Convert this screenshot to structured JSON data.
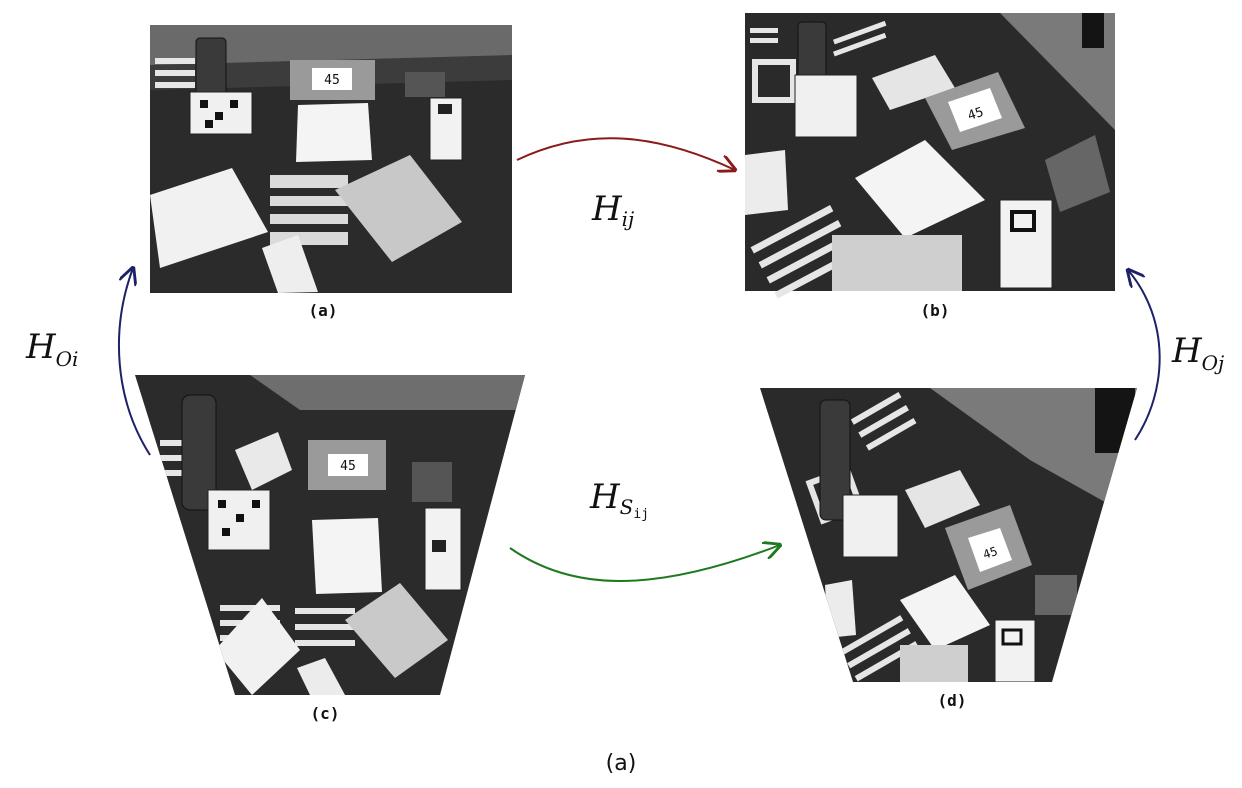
{
  "panels": [
    {
      "id": "a",
      "caption": "(a)"
    },
    {
      "id": "b",
      "caption": "(b)"
    },
    {
      "id": "c",
      "caption": "(c)"
    },
    {
      "id": "d",
      "caption": "(d)"
    }
  ],
  "scene_text": {
    "number_card": "45"
  },
  "arrows": {
    "hij": {
      "base": "H",
      "sub": "ij",
      "color": "#8b1a1a"
    },
    "hsij": {
      "base": "H",
      "sub": "S",
      "subsub": "ij",
      "color": "#1e7a1e"
    },
    "hoi": {
      "base": "H",
      "sub": "Oi",
      "color": "#1c2266"
    },
    "hoj": {
      "base": "H",
      "sub": "Oj",
      "color": "#1c2266"
    }
  },
  "figure_caption": "(a)"
}
